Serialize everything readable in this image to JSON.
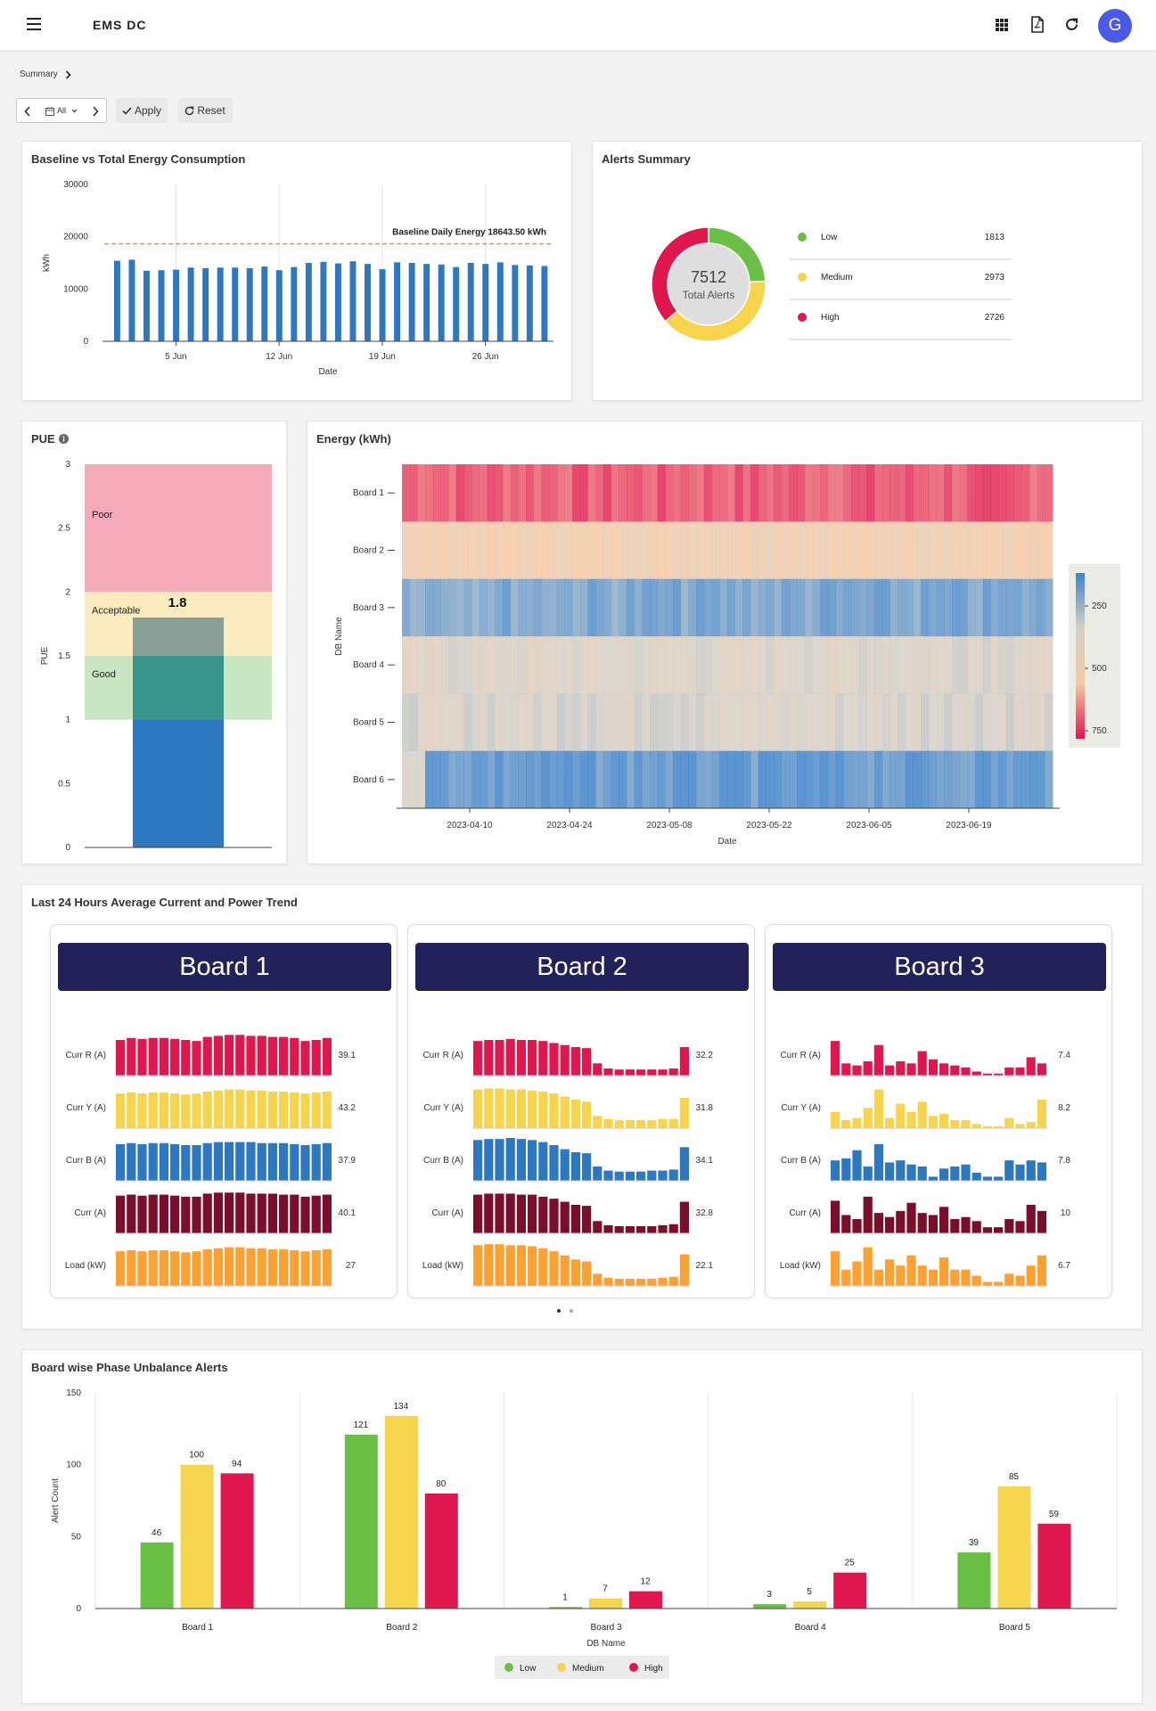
{
  "header": {
    "app_title": "EMS DC",
    "avatar_letter": "G",
    "accent": "#4a5ae6"
  },
  "breadcrumb": {
    "label": "Summary"
  },
  "filter": {
    "range": "All",
    "apply_label": "Apply",
    "reset_label": "Reset"
  },
  "energy_card": {
    "title": "Baseline vs Total Energy Consumption",
    "chart_data": {
      "type": "bar",
      "title": "Baseline vs Total Energy Consumption",
      "xlabel": "Date",
      "ylabel": "kWh",
      "ylim": [
        0,
        30000
      ],
      "yticks": [
        0,
        10000,
        20000,
        30000
      ],
      "xticks": [
        "5 Jun",
        "12 Jun",
        "19 Jun",
        "26 Jun"
      ],
      "values": [
        15400,
        15600,
        13500,
        13600,
        13700,
        14100,
        14000,
        14100,
        14100,
        14000,
        14300,
        13600,
        14200,
        15000,
        15200,
        14900,
        15300,
        14800,
        13800,
        15100,
        15000,
        14800,
        14700,
        14200,
        15000,
        14800,
        15100,
        14600,
        14500,
        14400
      ],
      "baseline": 18643.5,
      "baseline_label": "Baseline Daily Energy 18643.50 kWh",
      "color": "#2e78c2",
      "baseline_color": "#ff8c1a"
    }
  },
  "alerts_card": {
    "title": "Alerts Summary",
    "total_value": "7512",
    "total_label": "Total Alerts",
    "chart_data": {
      "type": "pie",
      "labels": [
        "Low",
        "Medium",
        "High"
      ],
      "values": [
        1813,
        2973,
        2726
      ],
      "colors": [
        "#6ac045",
        "#f6d44c",
        "#e0164e"
      ]
    },
    "legend": [
      {
        "label": "Low",
        "value": "1813",
        "color": "#6ac045"
      },
      {
        "label": "Medium",
        "value": "2973",
        "color": "#f6d44c"
      },
      {
        "label": "High",
        "value": "2726",
        "color": "#e0164e"
      }
    ]
  },
  "pue_card": {
    "title": "PUE",
    "info_icon": "info-icon",
    "chart_data": {
      "type": "bar",
      "ylabel": "PUE",
      "ylim": [
        0,
        3
      ],
      "yticks": [
        "0",
        "0.5",
        "1",
        "1.5",
        "2",
        "2.5",
        "3"
      ],
      "value": 1.8,
      "value_label": "1.8",
      "bands": [
        {
          "label": "Good",
          "from": 1,
          "to": 1.5,
          "color": "#c8e6c1"
        },
        {
          "label": "Acceptable",
          "from": 1.5,
          "to": 2,
          "color": "#fcebbe"
        },
        {
          "label": "Poor",
          "from": 2,
          "to": 3,
          "color": "#f5aab9"
        }
      ]
    }
  },
  "heatmap_card": {
    "title": "Energy (kWh)",
    "chart_data": {
      "type": "heatmap",
      "xlabel": "Date",
      "ylabel": "DB Name",
      "rows": [
        "Board 1",
        "Board 2",
        "Board 3",
        "Board 4",
        "Board 5",
        "Board 6"
      ],
      "xticks": [
        "2023-04-10",
        "2023-04-24",
        "2023-05-08",
        "2023-05-22",
        "2023-06-05",
        "2023-06-19"
      ],
      "row_levels": [
        740,
        540,
        220,
        390,
        380,
        180
      ],
      "colorbar_ticks": [
        "250",
        "500",
        "750"
      ],
      "colorscale": [
        "#3f83c9",
        "#d5cfc6",
        "#f6c8a2",
        "#e0164e"
      ]
    }
  },
  "trend_card": {
    "title": "Last 24 Hours Average Current and Power Trend",
    "boards": [
      {
        "name": "Board 1",
        "metrics": [
          {
            "label": "Curr R (A)",
            "value": "39.1",
            "color": "#e0164e",
            "bars": [
              35,
              37,
              36,
              37,
              37,
              36,
              35,
              34,
              38,
              39,
              40,
              40,
              39,
              39,
              38,
              38,
              37,
              34,
              35,
              37
            ]
          },
          {
            "label": "Curr Y (A)",
            "value": "43.2",
            "color": "#f6d44c",
            "bars": [
              34,
              35,
              34,
              35,
              35,
              34,
              33,
              34,
              36,
              37,
              38,
              38,
              37,
              37,
              36,
              36,
              35,
              34,
              35,
              36
            ]
          },
          {
            "label": "Curr B (A)",
            "value": "37.9",
            "color": "#2e78c2",
            "bars": [
              36,
              37,
              36,
              37,
              37,
              36,
              35,
              35,
              37,
              38,
              38,
              38,
              38,
              37,
              37,
              37,
              36,
              35,
              36,
              37
            ]
          },
          {
            "label": "Curr (A)",
            "value": "40.1",
            "color": "#7b0f2b",
            "bars": [
              37,
              38,
              37,
              38,
              38,
              37,
              36,
              36,
              39,
              40,
              40,
              40,
              39,
              39,
              39,
              38,
              38,
              36,
              37,
              38
            ]
          },
          {
            "label": "Load (kW)",
            "value": "27",
            "color": "#ffa033",
            "bars": [
              34,
              35,
              34,
              35,
              35,
              34,
              33,
              34,
              36,
              37,
              38,
              38,
              37,
              37,
              36,
              36,
              35,
              34,
              35,
              36
            ]
          }
        ]
      },
      {
        "name": "Board 2",
        "metrics": [
          {
            "label": "Curr R (A)",
            "value": "32.2",
            "color": "#e0164e",
            "bars": [
              34,
              35,
              35,
              36,
              35,
              35,
              34,
              32,
              30,
              28,
              27,
              12,
              7,
              6,
              6,
              6,
              6,
              6,
              7,
              28
            ]
          },
          {
            "label": "Curr Y (A)",
            "value": "31.8",
            "color": "#f6d44c",
            "bars": [
              38,
              39,
              39,
              38,
              38,
              37,
              36,
              34,
              31,
              28,
              26,
              12,
              9,
              8,
              8,
              8,
              8,
              9,
              9,
              30
            ]
          },
          {
            "label": "Curr B (A)",
            "value": "34.1",
            "color": "#2e78c2",
            "bars": [
              40,
              41,
              41,
              42,
              41,
              40,
              38,
              35,
              31,
              28,
              27,
              14,
              10,
              9,
              9,
              9,
              10,
              10,
              11,
              33
            ]
          },
          {
            "label": "Curr (A)",
            "value": "32.8",
            "color": "#7b0f2b",
            "bars": [
              38,
              39,
              39,
              39,
              38,
              38,
              36,
              34,
              31,
              28,
              27,
              12,
              8,
              7,
              7,
              7,
              7,
              8,
              9,
              31
            ]
          },
          {
            "label": "Load (kW)",
            "value": "22.1",
            "color": "#ffa033",
            "bars": [
              40,
              41,
              41,
              40,
              40,
              39,
              37,
              34,
              30,
              26,
              24,
              12,
              8,
              7,
              7,
              7,
              7,
              8,
              9,
              31
            ]
          }
        ]
      },
      {
        "name": "Board 3",
        "metrics": [
          {
            "label": "Curr R (A)",
            "value": "7.4",
            "color": "#e0164e",
            "bars": [
              34,
              12,
              10,
              14,
              30,
              10,
              14,
              12,
              24,
              16,
              12,
              10,
              8,
              4,
              2,
              2,
              8,
              8,
              18,
              12
            ]
          },
          {
            "label": "Curr Y (A)",
            "value": "8.2",
            "color": "#f6d44c",
            "bars": [
              16,
              8,
              10,
              20,
              38,
              10,
              24,
              16,
              26,
              12,
              14,
              8,
              8,
              4,
              2,
              2,
              10,
              4,
              6,
              28
            ]
          },
          {
            "label": "Curr B (A)",
            "value": "7.8",
            "color": "#2e78c2",
            "bars": [
              20,
              22,
              30,
              14,
              36,
              18,
              20,
              16,
              14,
              4,
              12,
              14,
              16,
              8,
              4,
              4,
              20,
              16,
              20,
              18
            ]
          },
          {
            "label": "Curr (A)",
            "value": "10",
            "color": "#7b0f2b",
            "bars": [
              32,
              18,
              14,
              36,
              20,
              16,
              22,
              30,
              20,
              18,
              26,
              14,
              16,
              12,
              6,
              6,
              14,
              12,
              28,
              22
            ]
          },
          {
            "label": "Load (kW)",
            "value": "6.7",
            "color": "#ffa033",
            "bars": [
              34,
              16,
              24,
              38,
              16,
              26,
              20,
              30,
              20,
              16,
              28,
              16,
              16,
              10,
              4,
              4,
              12,
              10,
              20,
              30
            ]
          }
        ]
      }
    ],
    "pager": {
      "active": 0,
      "count": 2
    }
  },
  "phase_card": {
    "title": "Board wise Phase Unbalance Alerts",
    "chart_data": {
      "type": "bar",
      "xlabel": "DB Name",
      "ylabel": "Alert Count",
      "ylim": [
        0,
        150
      ],
      "yticks": [
        0,
        50,
        100,
        150
      ],
      "categories": [
        "Board 1",
        "Board 2",
        "Board 3",
        "Board 4",
        "Board 5"
      ],
      "series": [
        {
          "name": "Low",
          "color": "#6ac045",
          "values": [
            46,
            121,
            1,
            3,
            39
          ]
        },
        {
          "name": "Medium",
          "color": "#f6d44c",
          "values": [
            100,
            134,
            7,
            5,
            85
          ]
        },
        {
          "name": "High",
          "color": "#e0164e",
          "values": [
            94,
            80,
            12,
            25,
            59
          ]
        }
      ]
    }
  }
}
